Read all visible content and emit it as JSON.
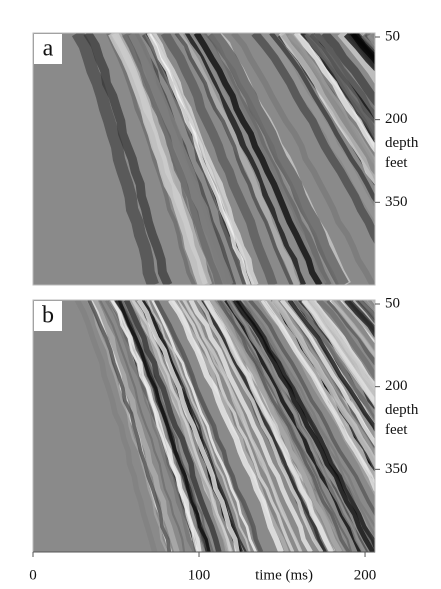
{
  "chart_data": [
    {
      "type": "image",
      "panel_label": "a",
      "ylim": [
        50,
        500
      ],
      "yticks": [
        50,
        200,
        350
      ],
      "ylabel": [
        "depth",
        "feet"
      ]
    },
    {
      "type": "image",
      "panel_label": "b",
      "ylim": [
        50,
        500
      ],
      "yticks": [
        50,
        200,
        350
      ],
      "ylabel": [
        "depth",
        "feet"
      ],
      "xlim": [
        0,
        206
      ],
      "xticks": [
        0,
        100,
        200
      ],
      "xlabel": "time (ms)"
    }
  ]
}
